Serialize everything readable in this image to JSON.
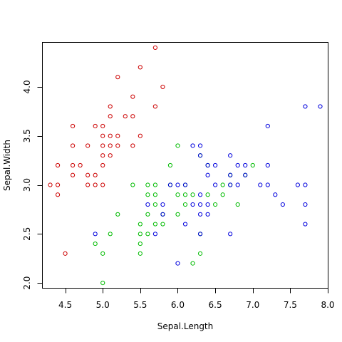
{
  "chart_data": {
    "type": "scatter",
    "title": "",
    "xlabel": "Sepal.Length",
    "ylabel": "Sepal.Width",
    "xlim": [
      4.2,
      8.0
    ],
    "ylim": [
      1.95,
      4.45
    ],
    "xticks": [
      4.5,
      5.0,
      5.5,
      6.0,
      6.5,
      7.0,
      7.5,
      8.0
    ],
    "xtick_labels": [
      "4.5",
      "5.0",
      "5.5",
      "6.0",
      "6.5",
      "7.0",
      "7.5",
      "8.0"
    ],
    "yticks": [
      2.0,
      2.5,
      3.0,
      3.5,
      4.0
    ],
    "ytick_labels": [
      "2.0",
      "2.5",
      "3.0",
      "3.5",
      "4.0"
    ],
    "grid": false,
    "marker": "open-circle",
    "series": [
      {
        "color": "#cc0000",
        "points": [
          [
            4.3,
            3.0
          ],
          [
            4.4,
            2.9
          ],
          [
            4.4,
            3.0
          ],
          [
            4.4,
            3.2
          ],
          [
            4.5,
            2.3
          ],
          [
            4.6,
            3.1
          ],
          [
            4.6,
            3.2
          ],
          [
            4.6,
            3.4
          ],
          [
            4.6,
            3.6
          ],
          [
            4.7,
            3.2
          ],
          [
            4.8,
            3.0
          ],
          [
            4.8,
            3.1
          ],
          [
            4.8,
            3.4
          ],
          [
            4.9,
            3.0
          ],
          [
            4.9,
            3.1
          ],
          [
            4.9,
            3.6
          ],
          [
            5.0,
            3.0
          ],
          [
            5.0,
            3.2
          ],
          [
            5.0,
            3.3
          ],
          [
            5.0,
            3.4
          ],
          [
            5.0,
            3.5
          ],
          [
            5.0,
            3.6
          ],
          [
            5.1,
            3.3
          ],
          [
            5.1,
            3.4
          ],
          [
            5.1,
            3.5
          ],
          [
            5.1,
            3.7
          ],
          [
            5.1,
            3.8
          ],
          [
            5.2,
            3.4
          ],
          [
            5.2,
            3.5
          ],
          [
            5.2,
            4.1
          ],
          [
            5.3,
            3.7
          ],
          [
            5.4,
            3.4
          ],
          [
            5.4,
            3.7
          ],
          [
            5.4,
            3.9
          ],
          [
            5.5,
            3.5
          ],
          [
            5.5,
            4.2
          ],
          [
            5.7,
            3.8
          ],
          [
            5.7,
            4.4
          ],
          [
            5.8,
            4.0
          ]
        ]
      },
      {
        "color": "#00bb00",
        "points": [
          [
            4.9,
            2.4
          ],
          [
            5.0,
            2.0
          ],
          [
            5.0,
            2.3
          ],
          [
            5.1,
            2.5
          ],
          [
            5.2,
            2.7
          ],
          [
            5.4,
            3.0
          ],
          [
            5.5,
            2.3
          ],
          [
            5.5,
            2.4
          ],
          [
            5.5,
            2.5
          ],
          [
            5.5,
            2.6
          ],
          [
            5.6,
            2.5
          ],
          [
            5.6,
            2.7
          ],
          [
            5.6,
            2.9
          ],
          [
            5.6,
            3.0
          ],
          [
            5.7,
            2.6
          ],
          [
            5.7,
            2.8
          ],
          [
            5.7,
            2.9
          ],
          [
            5.7,
            3.0
          ],
          [
            5.8,
            2.6
          ],
          [
            5.8,
            2.7
          ],
          [
            5.9,
            3.2
          ],
          [
            5.9,
            3.0
          ],
          [
            6.0,
            2.7
          ],
          [
            6.0,
            2.9
          ],
          [
            6.0,
            3.4
          ],
          [
            6.1,
            2.8
          ],
          [
            6.1,
            2.9
          ],
          [
            6.1,
            3.0
          ],
          [
            6.2,
            2.2
          ],
          [
            6.2,
            2.9
          ],
          [
            6.3,
            2.3
          ],
          [
            6.3,
            2.5
          ],
          [
            6.3,
            3.3
          ],
          [
            6.4,
            2.9
          ],
          [
            6.4,
            3.2
          ],
          [
            6.5,
            2.8
          ],
          [
            6.6,
            2.9
          ],
          [
            6.6,
            3.0
          ],
          [
            6.7,
            3.0
          ],
          [
            6.7,
            3.1
          ],
          [
            6.8,
            2.8
          ],
          [
            6.9,
            3.1
          ],
          [
            7.0,
            3.2
          ]
        ]
      },
      {
        "color": "#0000dd",
        "points": [
          [
            4.9,
            2.5
          ],
          [
            5.6,
            2.8
          ],
          [
            5.7,
            2.5
          ],
          [
            5.8,
            2.7
          ],
          [
            5.8,
            2.8
          ],
          [
            5.9,
            3.0
          ],
          [
            6.0,
            2.2
          ],
          [
            6.0,
            3.0
          ],
          [
            6.1,
            2.6
          ],
          [
            6.1,
            3.0
          ],
          [
            6.2,
            2.8
          ],
          [
            6.2,
            3.4
          ],
          [
            6.3,
            2.5
          ],
          [
            6.3,
            2.7
          ],
          [
            6.3,
            2.8
          ],
          [
            6.3,
            2.9
          ],
          [
            6.3,
            3.3
          ],
          [
            6.3,
            3.4
          ],
          [
            6.4,
            2.7
          ],
          [
            6.4,
            2.8
          ],
          [
            6.4,
            3.1
          ],
          [
            6.4,
            3.2
          ],
          [
            6.5,
            3.0
          ],
          [
            6.5,
            3.2
          ],
          [
            6.7,
            2.5
          ],
          [
            6.7,
            3.0
          ],
          [
            6.7,
            3.1
          ],
          [
            6.7,
            3.3
          ],
          [
            6.8,
            3.0
          ],
          [
            6.8,
            3.2
          ],
          [
            6.9,
            3.1
          ],
          [
            6.9,
            3.2
          ],
          [
            7.1,
            3.0
          ],
          [
            7.2,
            3.0
          ],
          [
            7.2,
            3.2
          ],
          [
            7.2,
            3.6
          ],
          [
            7.3,
            2.9
          ],
          [
            7.4,
            2.8
          ],
          [
            7.6,
            3.0
          ],
          [
            7.7,
            2.6
          ],
          [
            7.7,
            2.8
          ],
          [
            7.7,
            3.0
          ],
          [
            7.7,
            3.8
          ],
          [
            7.9,
            3.8
          ]
        ]
      }
    ]
  }
}
